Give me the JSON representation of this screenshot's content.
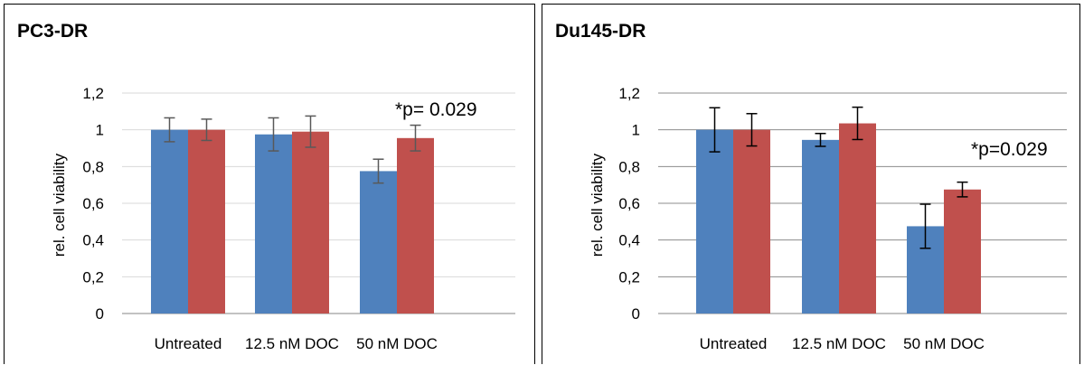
{
  "chart_data": [
    {
      "type": "bar",
      "title": "PC3-DR",
      "ylabel": "rel. cell viability",
      "xlabel": "",
      "categories": [
        "Untreated",
        "12.5 nM DOC",
        "50 nM DOC"
      ],
      "series": [
        {
          "values": [
            1.0,
            0.975,
            0.775
          ],
          "errors": [
            0.065,
            0.09,
            0.065
          ],
          "color": "#4f81bd"
        },
        {
          "values": [
            1.0,
            0.99,
            0.955
          ],
          "errors": [
            0.058,
            0.085,
            0.07
          ],
          "color": "#c0504d"
        }
      ],
      "ylim": [
        0,
        1.2
      ],
      "yticks": [
        "0",
        "0,2",
        "0,4",
        "0,6",
        "0,8",
        "1",
        "1,2"
      ],
      "grid": true,
      "annotation": "*p= 0.029"
    },
    {
      "type": "bar",
      "title": "Du145-DR",
      "ylabel": "rel. cell viability",
      "xlabel": "",
      "categories": [
        "Untreated",
        "12.5 nM DOC",
        "50 nM DOC"
      ],
      "series": [
        {
          "values": [
            1.0,
            0.945,
            0.475
          ],
          "errors": [
            0.12,
            0.035,
            0.12
          ],
          "color": "#4f81bd"
        },
        {
          "values": [
            1.0,
            1.035,
            0.675
          ],
          "errors": [
            0.088,
            0.088,
            0.04
          ],
          "color": "#c0504d"
        }
      ],
      "ylim": [
        0,
        1.2
      ],
      "yticks": [
        "0",
        "0,2",
        "0,4",
        "0,6",
        "0,8",
        "1",
        "1,2"
      ],
      "grid": true,
      "annotation": "*p=0.029"
    }
  ]
}
